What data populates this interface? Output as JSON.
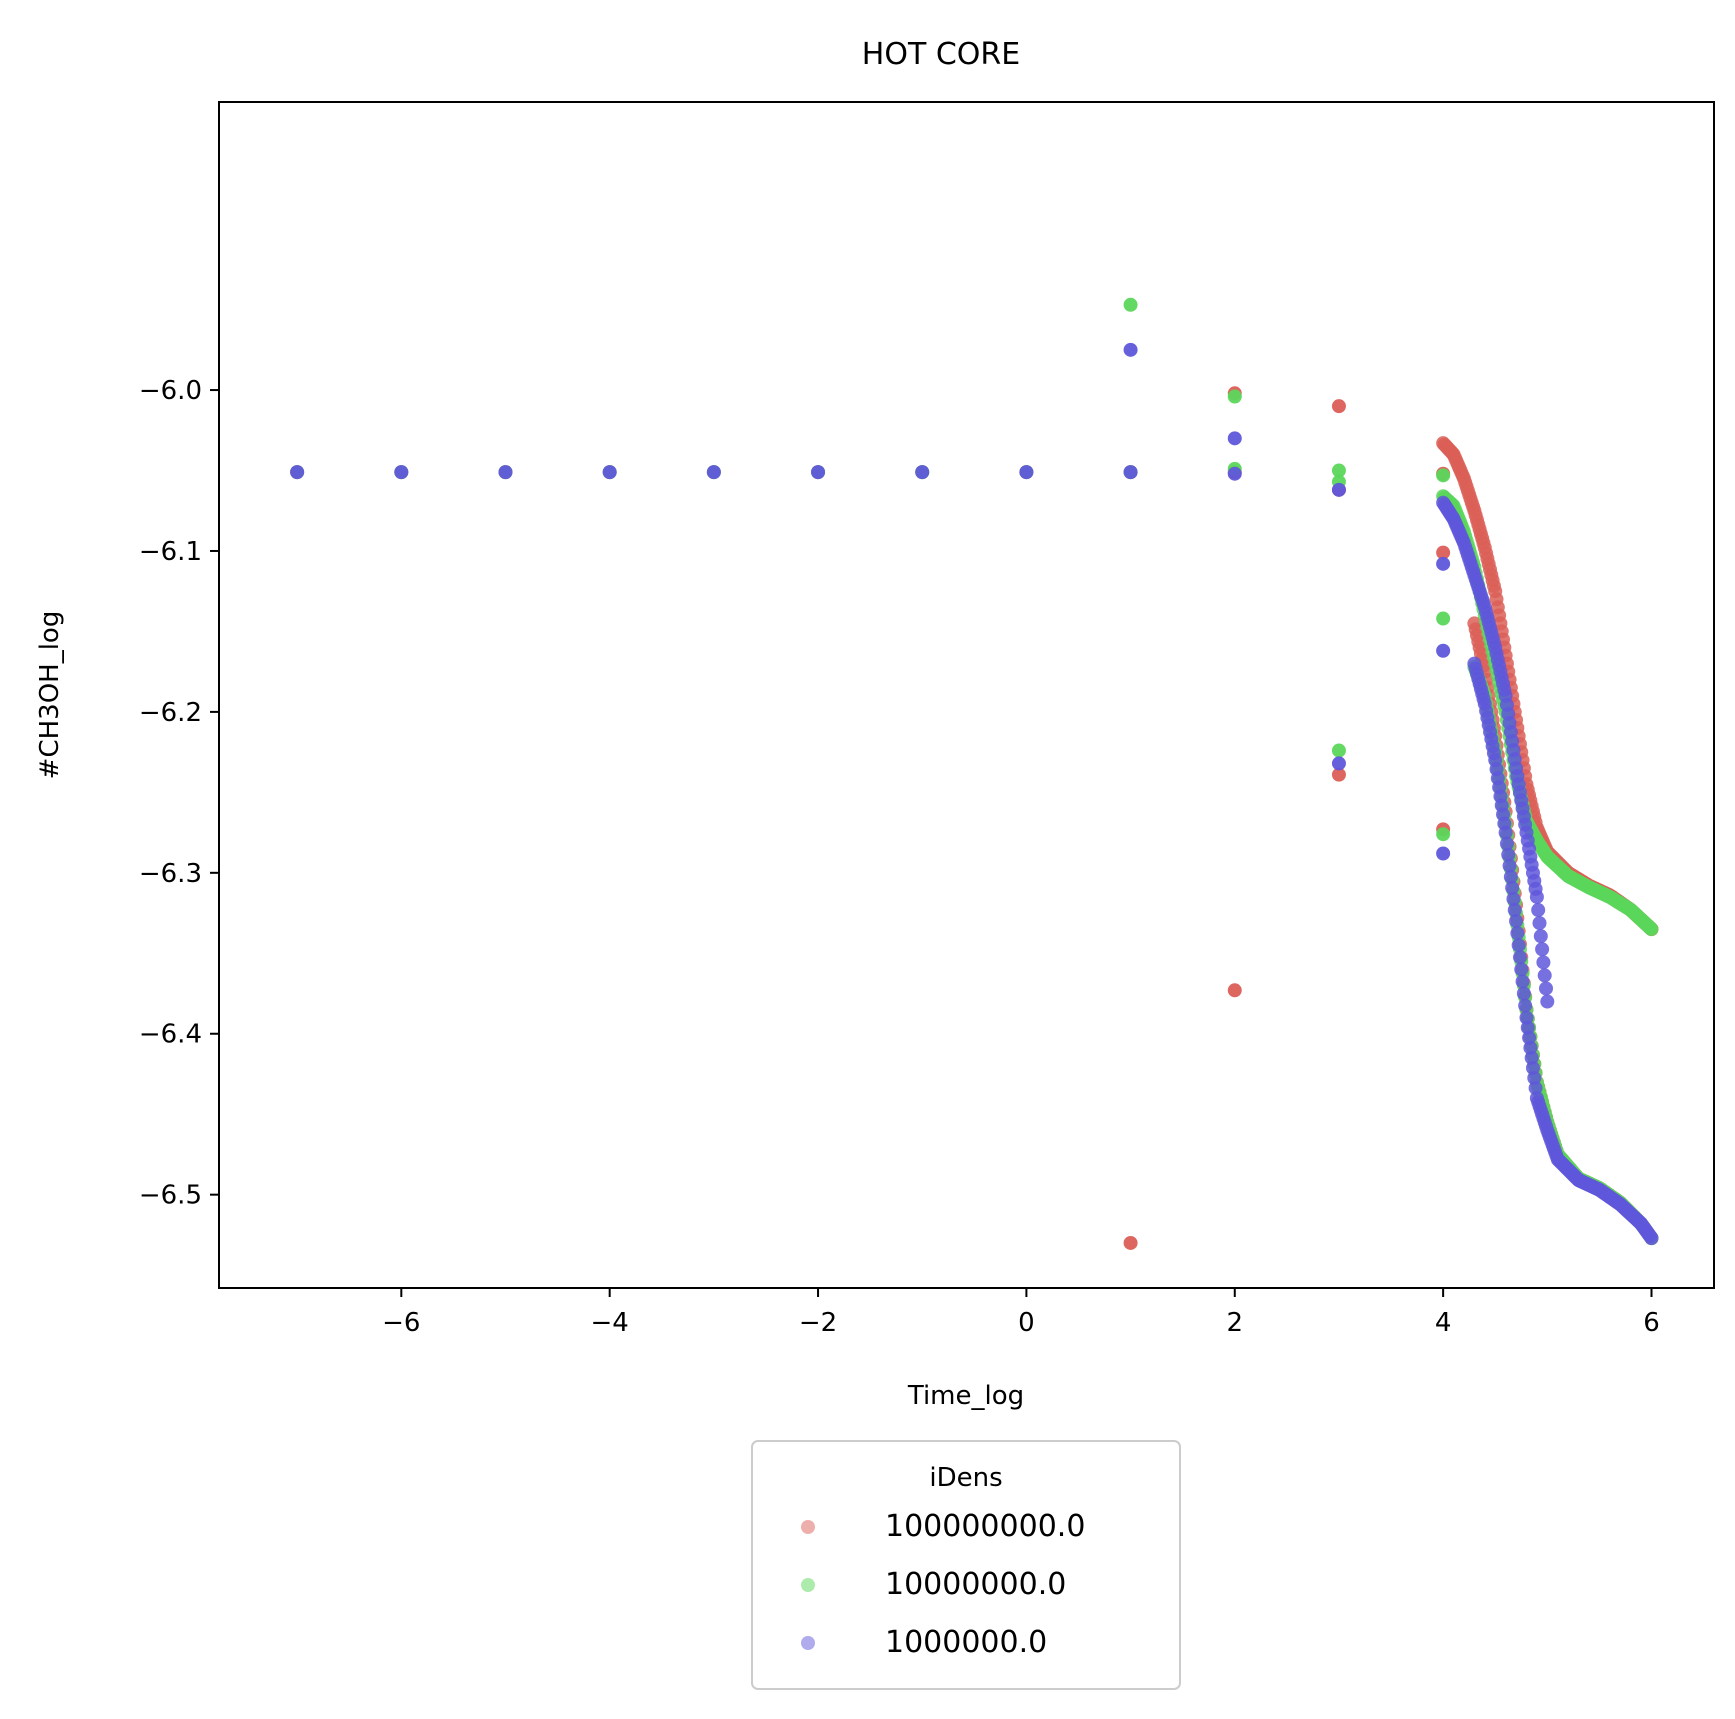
{
  "chart_data": {
    "type": "scatter",
    "title": "HOT CORE",
    "xlabel": "Time_log",
    "ylabel": "#CH3OH_log",
    "xlim": [
      -7.75,
      6.6
    ],
    "ylim": [
      -6.558,
      -5.821
    ],
    "xticks": [
      -6,
      -4,
      -2,
      0,
      2,
      4,
      6
    ],
    "xtick_labels": [
      "−6",
      "−4",
      "−2",
      "0",
      "2",
      "4",
      "6"
    ],
    "yticks": [
      -6.0,
      -6.1,
      -6.2,
      -6.3,
      -6.4,
      -6.5
    ],
    "ytick_labels": [
      "−6.0",
      "−6.1",
      "−6.2",
      "−6.3",
      "−6.4",
      "−6.5"
    ],
    "grid": false,
    "legend": {
      "title": "iDens",
      "placement": "below-center",
      "entries": [
        "100000000.0",
        "10000000.0",
        "1000000.0"
      ]
    },
    "series": [
      {
        "name": "100000000.0",
        "color": "#db5f57",
        "points": [
          [
            -7,
            -6.051
          ],
          [
            -6,
            -6.051
          ],
          [
            -5,
            -6.051
          ],
          [
            -4,
            -6.051
          ],
          [
            -3,
            -6.051
          ],
          [
            -2,
            -6.051
          ],
          [
            -1,
            -6.051
          ],
          [
            0,
            -6.051
          ],
          [
            1,
            -6.051
          ],
          [
            1,
            -6.53
          ],
          [
            2,
            -6.002
          ],
          [
            2,
            -6.051
          ],
          [
            2,
            -6.373
          ],
          [
            3,
            -6.01
          ],
          [
            3,
            -6.062
          ],
          [
            3,
            -6.239
          ],
          [
            4,
            -6.052
          ],
          [
            4,
            -6.101
          ],
          [
            4,
            -6.273
          ]
        ],
        "curve": [
          [
            4.0,
            -6.033
          ],
          [
            4.1,
            -6.04
          ],
          [
            4.2,
            -6.055
          ],
          [
            4.3,
            -6.075
          ],
          [
            4.4,
            -6.098
          ],
          [
            4.5,
            -6.125
          ],
          [
            4.6,
            -6.165
          ],
          [
            4.7,
            -6.205
          ],
          [
            4.8,
            -6.245
          ],
          [
            4.9,
            -6.272
          ],
          [
            5.0,
            -6.287
          ],
          [
            5.2,
            -6.3
          ],
          [
            5.4,
            -6.308
          ],
          [
            5.6,
            -6.314
          ],
          [
            5.8,
            -6.323
          ],
          [
            6.0,
            -6.335
          ]
        ],
        "curve2": [
          [
            4.3,
            -6.145
          ],
          [
            4.4,
            -6.175
          ],
          [
            4.5,
            -6.215
          ],
          [
            4.6,
            -6.262
          ],
          [
            4.7,
            -6.32
          ],
          [
            4.8,
            -6.385
          ],
          [
            4.9,
            -6.43
          ],
          [
            5.0,
            -6.455
          ],
          [
            5.1,
            -6.475
          ],
          [
            5.3,
            -6.49
          ],
          [
            5.5,
            -6.496
          ],
          [
            5.7,
            -6.505
          ],
          [
            5.9,
            -6.518
          ],
          [
            6.0,
            -6.527
          ]
        ]
      },
      {
        "name": "10000000.0",
        "color": "#5bd75b",
        "points": [
          [
            -7,
            -6.051
          ],
          [
            -6,
            -6.051
          ],
          [
            -5,
            -6.051
          ],
          [
            -4,
            -6.051
          ],
          [
            -3,
            -6.051
          ],
          [
            -2,
            -6.051
          ],
          [
            -1,
            -6.051
          ],
          [
            0,
            -6.051
          ],
          [
            1,
            -6.051
          ],
          [
            1,
            -5.947
          ],
          [
            2,
            -6.004
          ],
          [
            2,
            -6.049
          ],
          [
            3,
            -6.05
          ],
          [
            3,
            -6.057
          ],
          [
            3,
            -6.224
          ],
          [
            4,
            -6.053
          ],
          [
            4,
            -6.142
          ],
          [
            4,
            -6.276
          ]
        ],
        "curve": [
          [
            4.0,
            -6.066
          ],
          [
            4.1,
            -6.072
          ],
          [
            4.2,
            -6.088
          ],
          [
            4.3,
            -6.11
          ],
          [
            4.4,
            -6.14
          ],
          [
            4.5,
            -6.17
          ],
          [
            4.6,
            -6.2
          ],
          [
            4.7,
            -6.24
          ],
          [
            4.8,
            -6.268
          ],
          [
            4.9,
            -6.28
          ],
          [
            5.0,
            -6.29
          ],
          [
            5.2,
            -6.302
          ],
          [
            5.4,
            -6.309
          ],
          [
            5.6,
            -6.315
          ],
          [
            5.8,
            -6.323
          ],
          [
            6.0,
            -6.335
          ]
        ],
        "curve2": [
          [
            4.3,
            -6.172
          ],
          [
            4.4,
            -6.19
          ],
          [
            4.5,
            -6.225
          ],
          [
            4.6,
            -6.27
          ],
          [
            4.7,
            -6.325
          ],
          [
            4.8,
            -6.385
          ],
          [
            4.9,
            -6.43
          ],
          [
            5.0,
            -6.455
          ],
          [
            5.1,
            -6.475
          ],
          [
            5.3,
            -6.49
          ],
          [
            5.5,
            -6.496
          ],
          [
            5.7,
            -6.505
          ],
          [
            5.9,
            -6.518
          ],
          [
            6.0,
            -6.527
          ]
        ]
      },
      {
        "name": "1000000.0",
        "color": "#5f57db",
        "points": [
          [
            -7,
            -6.051
          ],
          [
            -6,
            -6.051
          ],
          [
            -5,
            -6.051
          ],
          [
            -4,
            -6.051
          ],
          [
            -3,
            -6.051
          ],
          [
            -2,
            -6.051
          ],
          [
            -1,
            -6.051
          ],
          [
            0,
            -6.051
          ],
          [
            1,
            -6.051
          ],
          [
            1,
            -5.975
          ],
          [
            2,
            -6.03
          ],
          [
            2,
            -6.052
          ],
          [
            3,
            -6.062
          ],
          [
            3,
            -6.232
          ],
          [
            4,
            -6.108
          ],
          [
            4,
            -6.162
          ],
          [
            4,
            -6.288
          ]
        ],
        "curve": [
          [
            4.0,
            -6.07
          ],
          [
            4.1,
            -6.08
          ],
          [
            4.2,
            -6.095
          ],
          [
            4.3,
            -6.115
          ],
          [
            4.4,
            -6.135
          ],
          [
            4.5,
            -6.16
          ],
          [
            4.6,
            -6.19
          ],
          [
            4.7,
            -6.235
          ],
          [
            4.8,
            -6.275
          ],
          [
            4.9,
            -6.315
          ],
          [
            5.0,
            -6.38
          ]
        ],
        "curve2": [
          [
            4.3,
            -6.17
          ],
          [
            4.4,
            -6.195
          ],
          [
            4.5,
            -6.23
          ],
          [
            4.6,
            -6.275
          ],
          [
            4.7,
            -6.33
          ],
          [
            4.8,
            -6.39
          ],
          [
            4.9,
            -6.44
          ],
          [
            5.0,
            -6.46
          ],
          [
            5.1,
            -6.478
          ],
          [
            5.3,
            -6.491
          ],
          [
            5.5,
            -6.497
          ],
          [
            5.7,
            -6.506
          ],
          [
            5.9,
            -6.518
          ],
          [
            6.0,
            -6.527
          ]
        ]
      }
    ]
  }
}
